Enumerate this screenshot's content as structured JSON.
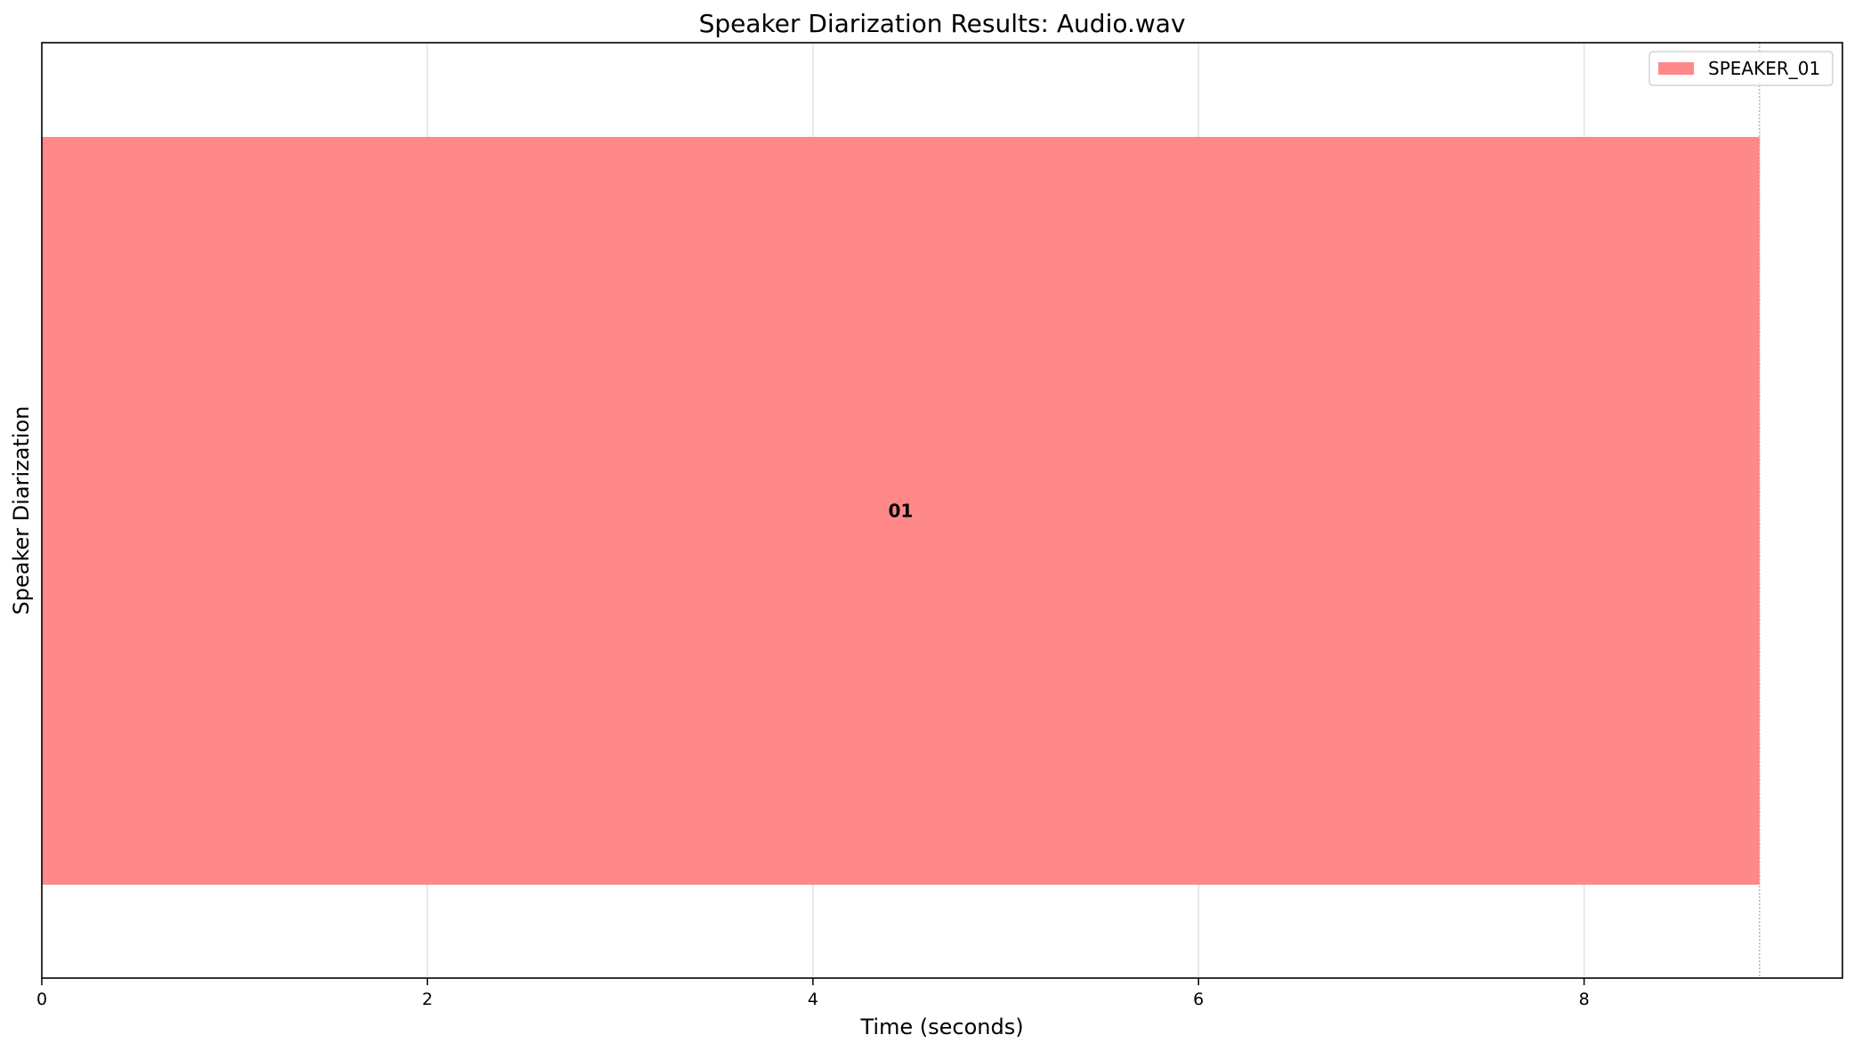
{
  "chart_data": {
    "type": "bar",
    "orientation": "horizontal",
    "title": "Speaker Diarization Results: Audio.wav",
    "xlabel": "Time (seconds)",
    "ylabel": "Speaker Diarization",
    "xlim": [
      0,
      9.34
    ],
    "xticks": [
      0,
      2,
      4,
      6,
      8
    ],
    "grid": true,
    "legend_position": "top-right",
    "end_marker_x": 8.91,
    "series": [
      {
        "name": "SPEAKER_01",
        "color": "#ff8888",
        "segments": [
          {
            "start": 0,
            "end": 8.91,
            "label": "01"
          }
        ]
      }
    ]
  }
}
